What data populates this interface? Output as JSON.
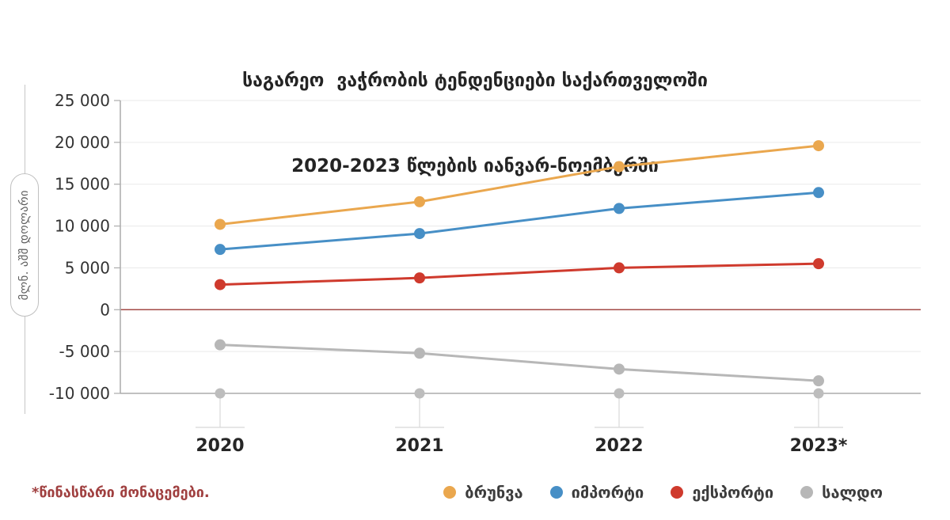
{
  "title": {
    "line1": "საგარეო  ვაჭრობის ტენდენციები საქართველოში",
    "line2": "2020-2023 წლების იანვარ-ნოემბერში"
  },
  "y_axis": {
    "unit_label": "მლნ. აშშ დოლარი",
    "tick_labels": [
      "25 000",
      "20 000",
      "15 000",
      "10 000",
      "5 000",
      "0",
      "-5 000",
      "-10 000"
    ]
  },
  "chart_data": {
    "type": "line",
    "categories": [
      "2020",
      "2021",
      "2022",
      "2023*"
    ],
    "series": [
      {
        "name": "ბრუნვა",
        "color": "#EAA74E",
        "values": [
          10200,
          12900,
          17100,
          19600
        ]
      },
      {
        "name": "იმპორტი",
        "color": "#478FC6",
        "values": [
          7200,
          9100,
          12100,
          14000
        ]
      },
      {
        "name": "ექსპორტი",
        "color": "#CF3A2D",
        "values": [
          3000,
          3800,
          5000,
          5500
        ]
      },
      {
        "name": "სალდო",
        "color": "#B7B7B7",
        "values": [
          -4200,
          -5200,
          -7100,
          -8500
        ]
      }
    ],
    "title": "საგარეო ვაჭრობის ტენდენციები საქართველოში 2020-2023 წლების იანვარ-ნოემბერში",
    "ylabel": "მლნ. აშშ დოლარი",
    "xlabel": "",
    "ylim": [
      -10000,
      25000
    ],
    "ytick_step": 5000,
    "grid": true,
    "legend_position": "bottom-right",
    "zero_line_color": "#A34A46",
    "axis_color": "#ABABAB",
    "gridline_color": "#EAEAEA",
    "tick_guide_color": "#D8D8D8"
  },
  "legend": {
    "items": [
      {
        "label": "ბრუნვა",
        "color": "#EAA74E"
      },
      {
        "label": "იმპორტი",
        "color": "#478FC6"
      },
      {
        "label": "ექსპორტი",
        "color": "#CF3A2D"
      },
      {
        "label": "სალდო",
        "color": "#B7B7B7"
      }
    ]
  },
  "footnote": {
    "text": "*წინასწარი მონაცემები.",
    "color": "#A04040"
  }
}
